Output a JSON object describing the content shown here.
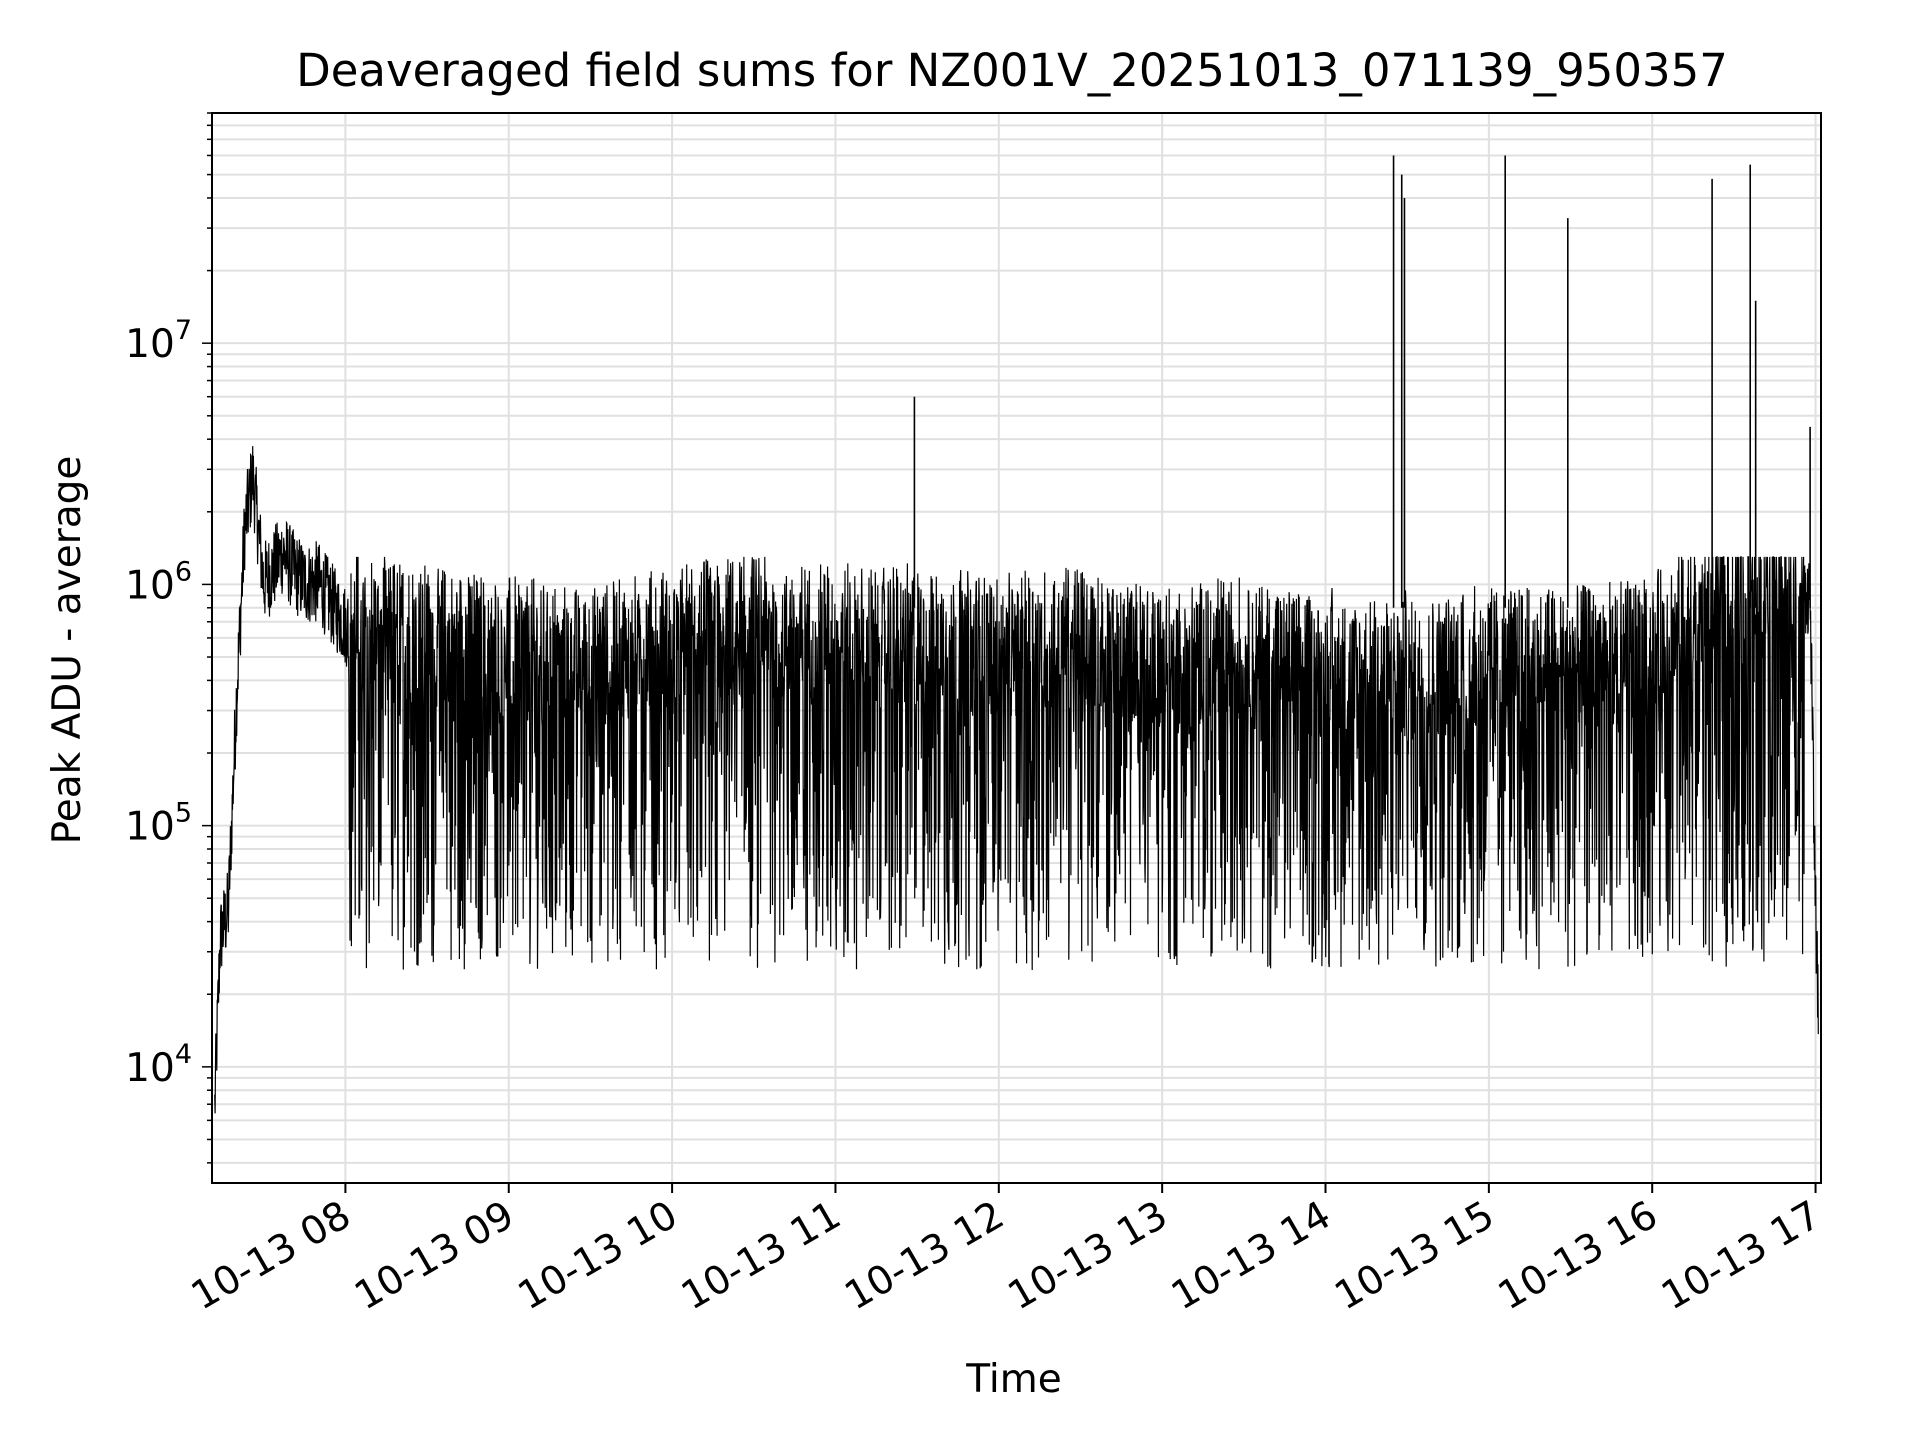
{
  "chart_data": {
    "type": "line",
    "title": "Deaveraged field sums for NZ001V_20251013_071139_950357",
    "xlabel": "Time",
    "ylabel": "Peak ADU - average",
    "y_scale": "log",
    "grid": true,
    "legend": "none",
    "line_color": "#000000",
    "grid_color": "#e0e0e0",
    "xlim": [
      "2025-10-13 07:11",
      "2025-10-13 17:02"
    ],
    "ylim": [
      3300,
      90000000
    ],
    "x_ticks": [
      {
        "label": "10-13 08",
        "time": "2025-10-13 08:00"
      },
      {
        "label": "10-13 09",
        "time": "2025-10-13 09:00"
      },
      {
        "label": "10-13 10",
        "time": "2025-10-13 10:00"
      },
      {
        "label": "10-13 11",
        "time": "2025-10-13 11:00"
      },
      {
        "label": "10-13 12",
        "time": "2025-10-13 12:00"
      },
      {
        "label": "10-13 13",
        "time": "2025-10-13 13:00"
      },
      {
        "label": "10-13 14",
        "time": "2025-10-13 14:00"
      },
      {
        "label": "10-13 15",
        "time": "2025-10-13 15:00"
      },
      {
        "label": "10-13 16",
        "time": "2025-10-13 16:00"
      },
      {
        "label": "10-13 17",
        "time": "2025-10-13 17:00"
      }
    ],
    "y_ticks": [
      {
        "base": "10",
        "exp": "4",
        "value": 10000
      },
      {
        "base": "10",
        "exp": "5",
        "value": 100000
      },
      {
        "base": "10",
        "exp": "6",
        "value": 1000000
      },
      {
        "base": "10",
        "exp": "7",
        "value": 10000000
      }
    ],
    "series": [
      {
        "x": [
          "2025-10-13 07:12",
          "2025-10-13 07:14",
          "2025-10-13 07:17",
          "2025-10-13 07:20",
          "2025-10-13 07:23",
          "2025-10-13 07:26",
          "2025-10-13 07:30",
          "2025-10-13 07:33",
          "2025-10-13 07:37",
          "2025-10-13 07:41",
          "2025-10-13 07:45",
          "2025-10-13 07:50",
          "2025-10-13 08:00",
          "2025-10-13 08:30",
          "2025-10-13 09:00",
          "2025-10-13 09:30",
          "2025-10-13 10:00",
          "2025-10-13 10:30",
          "2025-10-13 11:00",
          "2025-10-13 11:30",
          "2025-10-13 12:00",
          "2025-10-13 12:30",
          "2025-10-13 13:00",
          "2025-10-13 13:30",
          "2025-10-13 14:00",
          "2025-10-13 14:30",
          "2025-10-13 15:00",
          "2025-10-13 15:30",
          "2025-10-13 16:00",
          "2025-10-13 16:30",
          "2025-10-13 16:45",
          "2025-10-13 16:58",
          "2025-10-13 17:00",
          "2025-10-13 17:01"
        ],
        "y": [
          6000,
          30000,
          40000,
          300000,
          1500000,
          2500000,
          900000,
          1000000,
          1200000,
          1000000,
          900000,
          900000,
          600000,
          500000,
          450000,
          400000,
          500000,
          550000,
          500000,
          500000,
          450000,
          500000,
          400000,
          450000,
          350000,
          350000,
          400000,
          400000,
          450000,
          900000,
          1000000,
          800000,
          40000,
          15000
        ]
      }
    ],
    "spikes": [
      {
        "time": "2025-10-13 11:29",
        "value": 6000000
      },
      {
        "time": "2025-10-13 14:25",
        "value": 60000000
      },
      {
        "time": "2025-10-13 14:28",
        "value": 50000000
      },
      {
        "time": "2025-10-13 14:29",
        "value": 40000000
      },
      {
        "time": "2025-10-13 15:06",
        "value": 60000000
      },
      {
        "time": "2025-10-13 15:29",
        "value": 33000000
      },
      {
        "time": "2025-10-13 16:22",
        "value": 48000000
      },
      {
        "time": "2025-10-13 16:36",
        "value": 55000000
      },
      {
        "time": "2025-10-13 16:38",
        "value": 15000000
      },
      {
        "time": "2025-10-13 16:58",
        "value": 4500000
      }
    ]
  }
}
